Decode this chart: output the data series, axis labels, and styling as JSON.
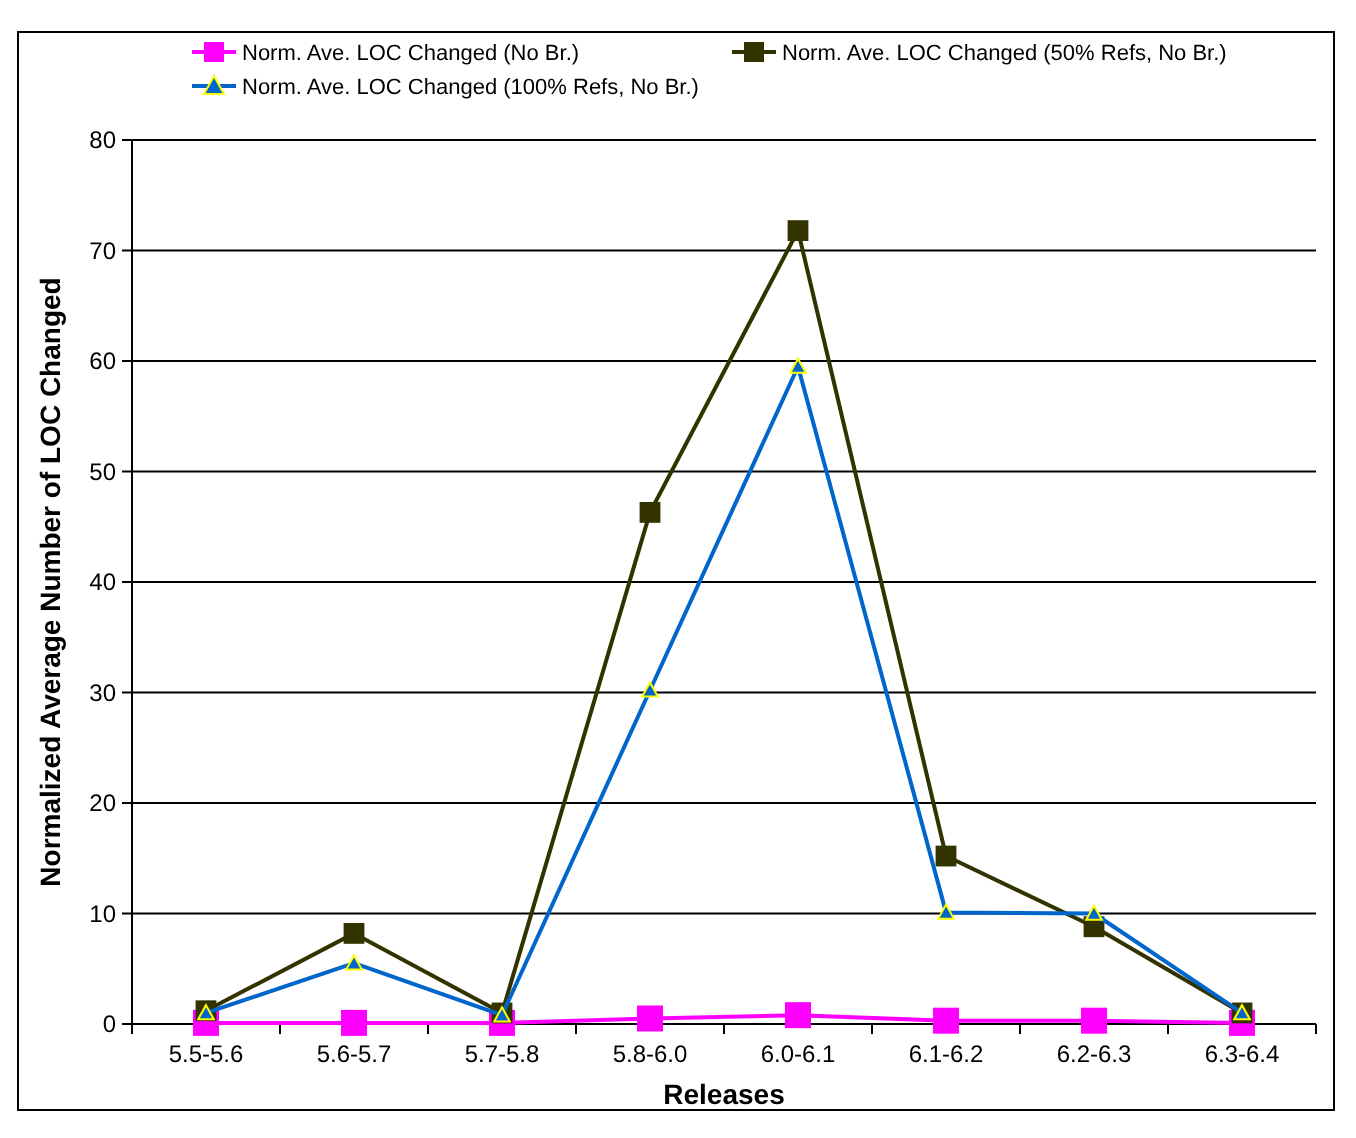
{
  "chart_data": {
    "type": "line",
    "xlabel": "Releases",
    "ylabel": "Normalized Average Number of LOC Changed",
    "categories": [
      "5.5-5.6",
      "5.6-5.7",
      "5.7-5.8",
      "5.8-6.0",
      "6.0-6.1",
      "6.1-6.2",
      "6.2-6.3",
      "6.3-6.4"
    ],
    "series": [
      {
        "name": "Norm. Ave. LOC Changed (No Br.)",
        "color": "#ff00ff",
        "marker": "square",
        "values": [
          0.1,
          0.1,
          0.1,
          0.5,
          0.8,
          0.3,
          0.3,
          0.1
        ]
      },
      {
        "name": "Norm. Ave. LOC Changed (50% Refs, No Br.)",
        "color": "#333300",
        "marker": "square",
        "values": [
          1.2,
          8.2,
          1.0,
          46.3,
          71.8,
          15.2,
          8.8,
          1.0
        ]
      },
      {
        "name": "Norm. Ave. LOC Changed (100% Refs, No Br.)",
        "color": "#0066cc",
        "marker": "triangle",
        "values": [
          1.0,
          5.5,
          0.8,
          30.2,
          59.5,
          10.1,
          10.0,
          1.0
        ]
      }
    ],
    "ylim": [
      0,
      80
    ],
    "yticks": [
      0,
      10,
      20,
      30,
      40,
      50,
      60,
      70,
      80
    ],
    "grid": "y",
    "legend": "top"
  }
}
